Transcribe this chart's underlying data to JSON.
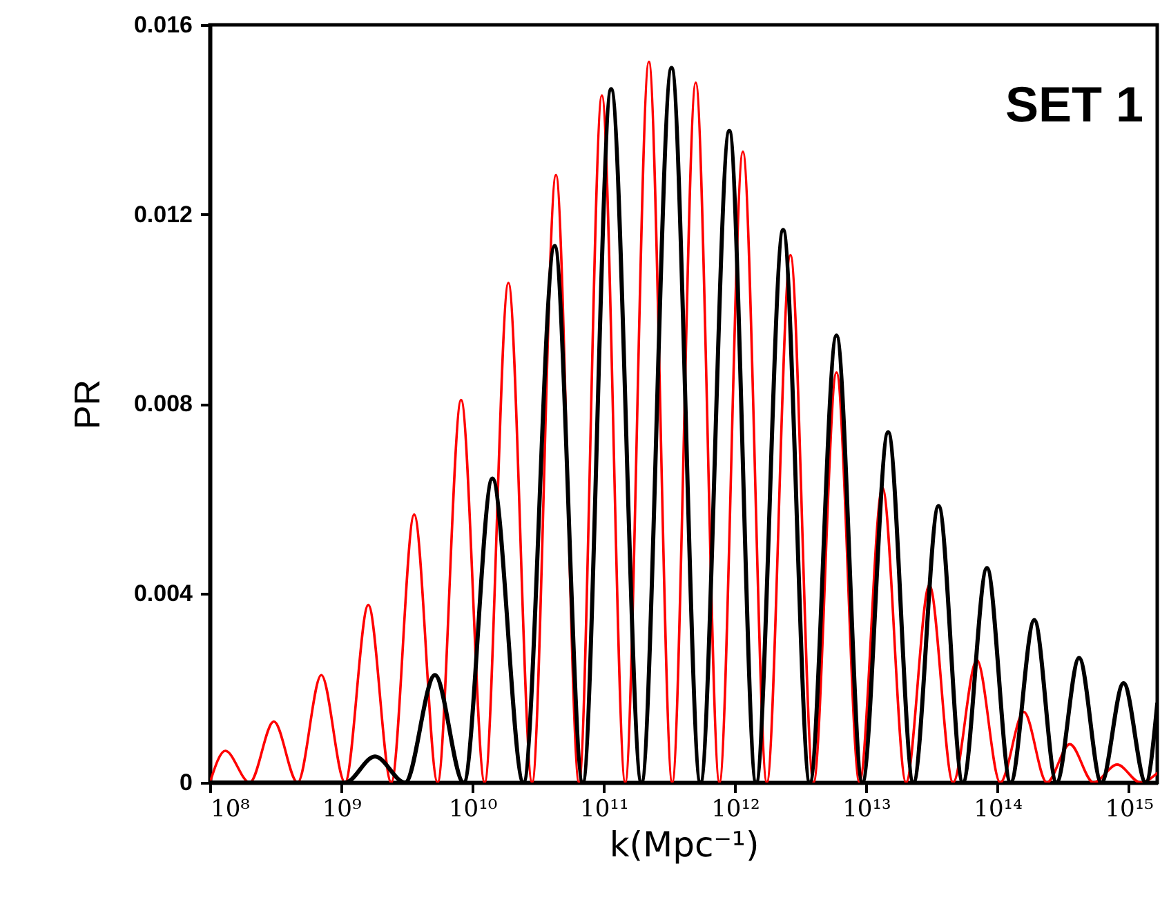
{
  "chart_data": {
    "type": "line",
    "xlabel": "k(Mpc⁻¹)",
    "ylabel": "PR",
    "annotations": [
      "SET 1"
    ],
    "log": "x",
    "grid": false,
    "marker": "none",
    "line_style": "solid",
    "xlim": [
      100000000.0,
      1650000000000000.0
    ],
    "ylim": [
      0,
      0.016
    ],
    "xticks": [
      {
        "value": 100000000.0,
        "label": "10⁸"
      },
      {
        "value": 1000000000.0,
        "label": "10⁹"
      },
      {
        "value": 10000000000.0,
        "label": "10¹⁰"
      },
      {
        "value": 100000000000.0,
        "label": "10¹¹"
      },
      {
        "value": 1000000000000.0,
        "label": "10¹²"
      },
      {
        "value": 10000000000000.0,
        "label": "10¹³"
      },
      {
        "value": 100000000000000.0,
        "label": "10¹⁴"
      },
      {
        "value": 1000000000000000.0,
        "label": "10¹⁵"
      }
    ],
    "yticks": [
      0,
      0.004,
      0.008,
      0.012,
      0.016
    ],
    "series": [
      {
        "color": "#ff0000",
        "x": [
          100000000.0,
          131000000.0,
          201000000.0,
          307000000.0,
          466000000.0,
          706000000.0,
          1070000000.0,
          1610000000.0,
          2410000000.0,
          3600000000.0,
          5430000000.0,
          8200000000.0,
          12400000000.0,
          18800000000.0,
          28500000000.0,
          43300000000.0,
          64900000000.0,
          96900000000.0,
          146000000000.0,
          221000000000.0,
          333000000000.0,
          503000000000.0,
          762000000000.0,
          1150000000000.0,
          1750000000000.0,
          2650000000000.0,
          3970000000000.0,
          5940000000000.0,
          8890000000000.0,
          13300000000000.0,
          20100000000000.0,
          30300000000000.0,
          45900000000000.0,
          69700000000000.0,
          105000000000000.0,
          159000000000000.0,
          238000000000000.0,
          356000000000000.0,
          540000000000000.0,
          817000000000000.0,
          1230000000000000.0,
          1650000000000000.0
        ],
        "values": [
          0,
          0.00067,
          0,
          0.00129,
          0,
          0.00227,
          0,
          0.00375,
          0,
          0.00566,
          0,
          0.00808,
          0,
          0.01055,
          0,
          0.01283,
          0,
          0.01451,
          0,
          0.01522,
          0,
          0.01478,
          0,
          0.01332,
          0,
          0.01114,
          0,
          0.00866,
          0,
          0.00623,
          0,
          0.00417,
          0,
          0.00259,
          0,
          0.00149,
          0,
          0.00081,
          0,
          0.00038,
          0,
          0.0002
        ]
      },
      {
        "color": "#000000",
        "x": [
          100000000.0,
          1070000000.0,
          1810000000.0,
          3070000000.0,
          5180000000.0,
          8590000000.0,
          14200000000.0,
          24500000000.0,
          42300000000.0,
          69300000000.0,
          114000000000.0,
          194000000000.0,
          329000000000.0,
          546000000000.0,
          906000000000.0,
          1450000000000.0,
          2330000000000.0,
          3720000000000.0,
          5940000000000.0,
          9350000000000.0,
          14700000000000.0,
          22900000000000.0,
          35600000000000.0,
          54500000000000.0,
          83200000000000.0,
          126000000000000.0,
          191000000000000.0,
          282000000000000.0,
          419000000000000.0,
          619000000000000.0,
          914000000000000.0,
          1350000000000000.0,
          1650000000000000.0
        ],
        "values": [
          0,
          0,
          0.00055,
          0,
          0.00227,
          0,
          0.00642,
          0,
          0.01133,
          0,
          0.01464,
          0,
          0.01509,
          0,
          0.01376,
          0,
          0.01167,
          0,
          0.00944,
          0,
          0.0074,
          0,
          0.00584,
          0,
          0.00453,
          0,
          0.00343,
          0,
          0.00263,
          0,
          0.0021,
          0,
          0.00166
        ]
      }
    ]
  }
}
